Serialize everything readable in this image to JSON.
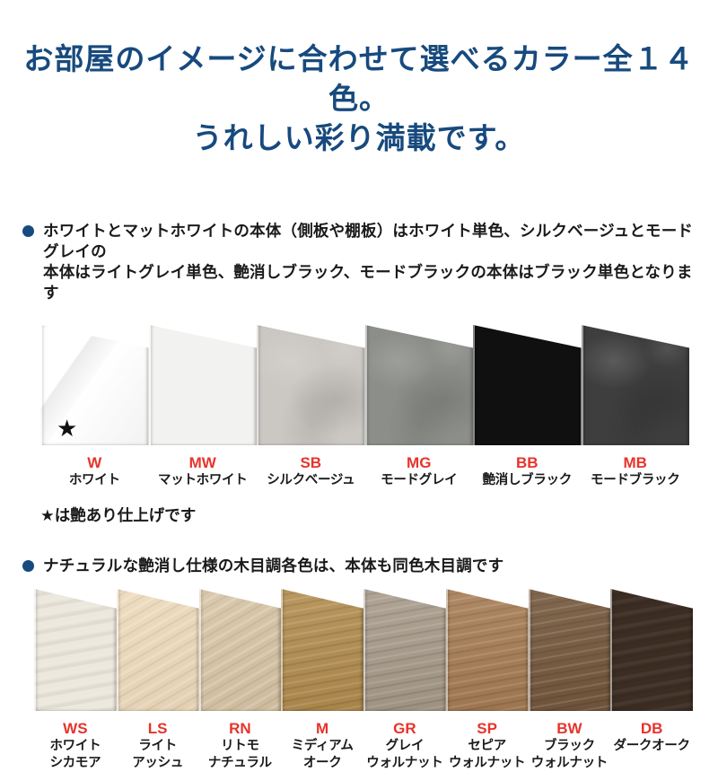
{
  "title": {
    "line1": "お部屋のイメージに合わせて選べるカラー全１４色。",
    "line2": "うれしい彩り満載です。"
  },
  "colors": {
    "accent_navy": "#174a7e",
    "code_red": "#e7342c",
    "text_black": "#1a1a1a",
    "background": "#ffffff"
  },
  "sections": {
    "solid_note": "ホワイトとマットホワイトの本体（側板や棚板）はホワイト単色、シルクベージュとモードグレイの\n本体はライトグレイ単色、艶消しブラック、モードブラックの本体はブラック単色となります",
    "gloss_note": "★は艶あり仕上げです",
    "wood_note": "ナチュラルな艶消し仕様の木目調各色は、本体も同色木目調です",
    "gloss_star": "★"
  },
  "swatch_groups": [
    {
      "items": [
        {
          "code": "W",
          "name": "ホワイト",
          "color": "#fafafa"
        },
        {
          "code": "MW",
          "name": "マットホワイト",
          "color": "#f2f2f0"
        },
        {
          "code": "SB",
          "name": "シルクベージュ",
          "color": "#cbc7c2"
        },
        {
          "code": "MG",
          "name": "モードグレイ",
          "color": "#8c8e8a"
        },
        {
          "code": "BB",
          "name": "艶消しブラック",
          "color": "#101010"
        },
        {
          "code": "MB",
          "name": "モードブラック",
          "color": "#3d3e3d"
        }
      ]
    },
    {
      "items": [
        {
          "code": "WS",
          "name": "ホワイト\nシカモア",
          "color": "#ece8dd"
        },
        {
          "code": "LS",
          "name": "ライト\nアッシュ",
          "color": "#ecd8b8"
        },
        {
          "code": "RN",
          "name": "リトモ\nナチュラル",
          "color": "#d5c2a2"
        },
        {
          "code": "M",
          "name": "ミディアム\nオーク",
          "color": "#b28c4e"
        },
        {
          "code": "GR",
          "name": "グレイ\nウォルナット",
          "color": "#a79a8a"
        },
        {
          "code": "SP",
          "name": "セピア\nウォルナット",
          "color": "#a67c54"
        },
        {
          "code": "BW",
          "name": "ブラック\nウォルナット",
          "color": "#74573c"
        },
        {
          "code": "DB",
          "name": "ダークオーク",
          "color": "#3c2d23"
        }
      ]
    }
  ]
}
